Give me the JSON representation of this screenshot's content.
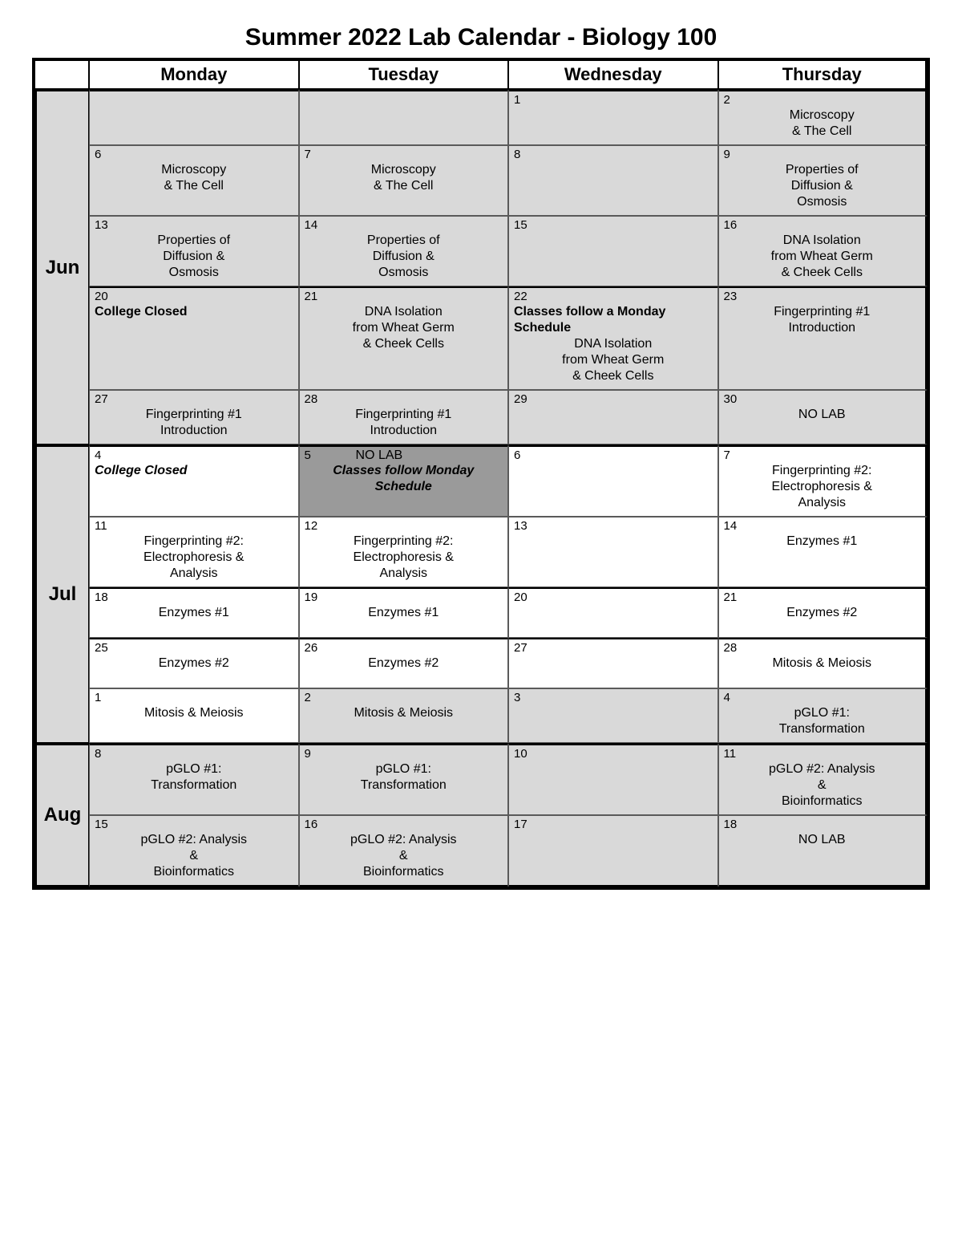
{
  "title": "Summer 2022 Lab Calendar - Biology 100",
  "days": [
    "Monday",
    "Tuesday",
    "Wednesday",
    "Thursday"
  ],
  "months": {
    "jun": "Jun",
    "jul": "Jul",
    "aug": "Aug"
  },
  "cells": {
    "jun_w1_mon": {
      "num": "",
      "text": ""
    },
    "jun_w1_tue": {
      "num": "",
      "text": ""
    },
    "jun_w1_wed": {
      "num": "1",
      "text": ""
    },
    "jun_w1_thu": {
      "num": "2",
      "text": "Microscopy\n& The Cell"
    },
    "jun_w2_mon": {
      "num": "6",
      "text": "Microscopy\n& The Cell"
    },
    "jun_w2_tue": {
      "num": "7",
      "text": "Microscopy\n& The Cell"
    },
    "jun_w2_wed": {
      "num": "8",
      "text": ""
    },
    "jun_w2_thu": {
      "num": "9",
      "text": "Properties of\nDiffusion &\nOsmosis"
    },
    "jun_w3_mon": {
      "num": "13",
      "text": "Properties of\nDiffusion &\nOsmosis"
    },
    "jun_w3_tue": {
      "num": "14",
      "text": "Properties of\nDiffusion &\nOsmosis"
    },
    "jun_w3_wed": {
      "num": "15",
      "text": ""
    },
    "jun_w3_thu": {
      "num": "16",
      "text": "DNA Isolation\nfrom Wheat Germ\n& Cheek Cells"
    },
    "jun_w4_mon": {
      "num": "20",
      "bold": "College Closed"
    },
    "jun_w4_tue": {
      "num": "21",
      "text": "DNA Isolation\nfrom Wheat Germ\n& Cheek Cells"
    },
    "jun_w4_wed": {
      "num": "22",
      "bold": "Classes follow a Monday Schedule",
      "text": "DNA Isolation\nfrom Wheat Germ\n& Cheek Cells"
    },
    "jun_w4_thu": {
      "num": "23",
      "text": "Fingerprinting #1\nIntroduction"
    },
    "jun_w5_mon": {
      "num": "27",
      "text": "Fingerprinting #1\nIntroduction"
    },
    "jun_w5_tue": {
      "num": "28",
      "text": "Fingerprinting #1\nIntroduction"
    },
    "jun_w5_wed": {
      "num": "29",
      "text": ""
    },
    "jun_w5_thu": {
      "num": "30",
      "text": "NO LAB"
    },
    "jul_w1_mon": {
      "num": "4",
      "bolditalic": "College Closed"
    },
    "jul_w1_tue": {
      "num": "5",
      "top": "NO LAB",
      "bolditalic": "Classes follow Monday Schedule"
    },
    "jul_w1_wed": {
      "num": "6",
      "text": ""
    },
    "jul_w1_thu": {
      "num": "7",
      "text": "Fingerprinting #2:\nElectrophoresis &\nAnalysis"
    },
    "jul_w2_mon": {
      "num": "11",
      "text": "Fingerprinting #2:\nElectrophoresis &\nAnalysis"
    },
    "jul_w2_tue": {
      "num": "12",
      "text": "Fingerprinting #2:\nElectrophoresis &\nAnalysis"
    },
    "jul_w2_wed": {
      "num": "13",
      "text": ""
    },
    "jul_w2_thu": {
      "num": "14",
      "text": "Enzymes #1"
    },
    "jul_w3_mon": {
      "num": "18",
      "text": "Enzymes #1"
    },
    "jul_w3_tue": {
      "num": "19",
      "text": "Enzymes #1"
    },
    "jul_w3_wed": {
      "num": "20",
      "text": ""
    },
    "jul_w3_thu": {
      "num": "21",
      "text": "Enzymes #2"
    },
    "jul_w4_mon": {
      "num": "25",
      "text": "Enzymes #2"
    },
    "jul_w4_tue": {
      "num": "26",
      "text": "Enzymes #2"
    },
    "jul_w4_wed": {
      "num": "27",
      "text": ""
    },
    "jul_w4_thu": {
      "num": "28",
      "text": "Mitosis & Meiosis"
    },
    "jul_w5_mon": {
      "num": "1",
      "text": "Mitosis & Meiosis"
    },
    "jul_w5_tue": {
      "num": "2",
      "text": "Mitosis & Meiosis"
    },
    "jul_w5_wed": {
      "num": "3",
      "text": ""
    },
    "jul_w5_thu": {
      "num": "4",
      "text": "pGLO #1:\nTransformation"
    },
    "aug_w1_mon": {
      "num": "8",
      "text": "pGLO #1:\nTransformation"
    },
    "aug_w1_tue": {
      "num": "9",
      "text": "pGLO #1:\nTransformation"
    },
    "aug_w1_wed": {
      "num": "10",
      "text": ""
    },
    "aug_w1_thu": {
      "num": "11",
      "text": "pGLO #2: Analysis\n&\nBioinformatics"
    },
    "aug_w2_mon": {
      "num": "15",
      "text": "pGLO #2: Analysis\n&\nBioinformatics"
    },
    "aug_w2_tue": {
      "num": "16",
      "text": "pGLO #2: Analysis\n&\nBioinformatics"
    },
    "aug_w2_wed": {
      "num": "17",
      "text": ""
    },
    "aug_w2_thu": {
      "num": "18",
      "text": "NO LAB"
    }
  },
  "style": {
    "colors": {
      "bg_gray": "#d9d9d9",
      "bg_darkgray": "#9a9a9a",
      "border": "#000000",
      "cell_border": "#5a5a5a"
    },
    "fonts": {
      "title_size": 30,
      "header_size": 22,
      "month_size": 24,
      "cell_size": 16
    }
  }
}
